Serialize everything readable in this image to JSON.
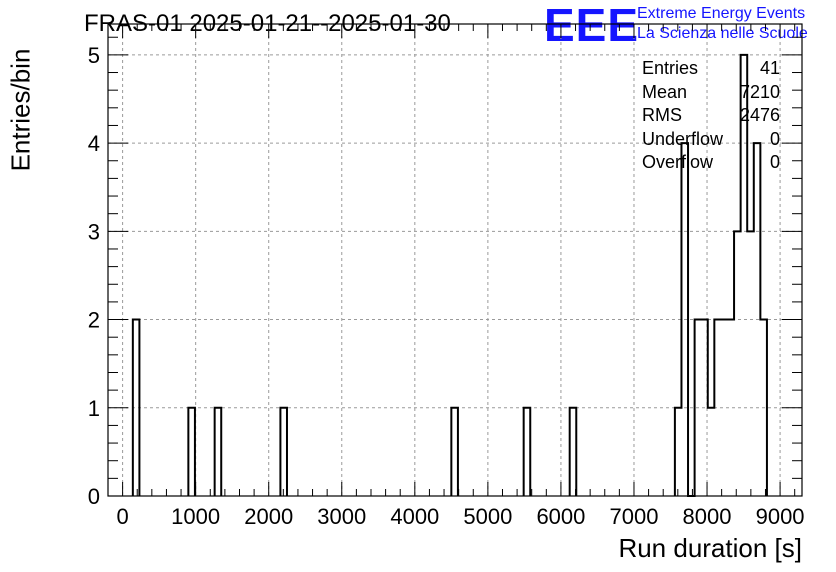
{
  "chart_data": {
    "type": "histogram",
    "title": "FRAS-01 2025-01-21--2025-01-30",
    "xlabel": "Run duration [s]",
    "ylabel": "Entries/bin",
    "xlim": [
      -200,
      9300
    ],
    "ylim": [
      0,
      5.35
    ],
    "x_ticks": [
      0,
      1000,
      2000,
      3000,
      4000,
      5000,
      6000,
      7000,
      8000,
      9000
    ],
    "y_ticks": [
      0,
      1,
      2,
      3,
      4,
      5
    ],
    "grid": true,
    "bin_width": 90,
    "bins": [
      {
        "start": 140,
        "count": 2
      },
      {
        "start": 900,
        "count": 1
      },
      {
        "start": 1260,
        "count": 1
      },
      {
        "start": 2160,
        "count": 1
      },
      {
        "start": 4500,
        "count": 1
      },
      {
        "start": 5490,
        "count": 1
      },
      {
        "start": 6120,
        "count": 1
      },
      {
        "start": 7560,
        "count": 1
      },
      {
        "start": 7650,
        "count": 4
      },
      {
        "start": 7740,
        "count": 0
      },
      {
        "start": 7830,
        "count": 2
      },
      {
        "start": 7920,
        "count": 2
      },
      {
        "start": 8010,
        "count": 1
      },
      {
        "start": 8100,
        "count": 2
      },
      {
        "start": 8190,
        "count": 2
      },
      {
        "start": 8280,
        "count": 2
      },
      {
        "start": 8370,
        "count": 3
      },
      {
        "start": 8460,
        "count": 5
      },
      {
        "start": 8550,
        "count": 3
      },
      {
        "start": 8640,
        "count": 4
      },
      {
        "start": 8730,
        "count": 2
      }
    ],
    "stats": [
      {
        "label": "Entries",
        "value": "41"
      },
      {
        "label": "Mean",
        "value": "7210"
      },
      {
        "label": "RMS",
        "value": "2476"
      },
      {
        "label": "Underflow",
        "value": "0"
      },
      {
        "label": "Overflow",
        "value": "0"
      }
    ]
  },
  "logo": {
    "mark": "EEE",
    "line1": "Extreme Energy Events",
    "line2": "La Scienza nelle Scuole",
    "color": "#1515ff"
  }
}
